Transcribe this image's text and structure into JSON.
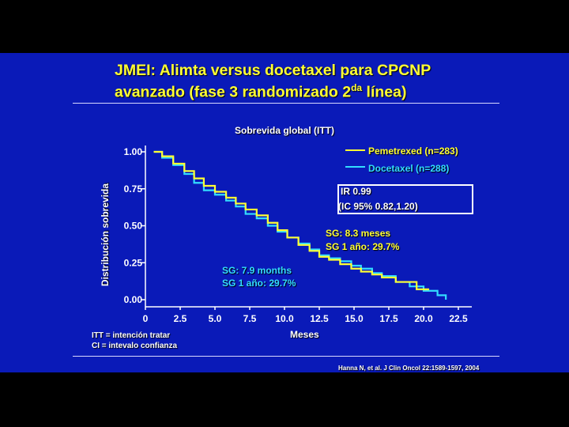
{
  "slide": {
    "title_line1": "JMEI: Alimta versus docetaxel para CPCNP",
    "title_line2_pre": "avanzado (fase 3 randomizado 2",
    "title_sup": "da",
    "title_line2_post": " línea)",
    "footnote_itt": "ITT = intención tratar",
    "footnote_ci": "CI = intevalo confianza",
    "citation": "Hanna N, et al. J Clin Oncol 22:1589-1597, 2004",
    "colors": {
      "background": "#0a1ab8",
      "title": "#ffff33",
      "pemetrexed": "#ffff33",
      "docetaxel": "#33ddff"
    }
  },
  "chart_data": {
    "type": "line",
    "subtitle": "Sobrevida global (ITT)",
    "xlabel": "Meses",
    "ylabel": "Distribución sobrevida",
    "xlim": [
      0,
      22.5
    ],
    "ylim": [
      0,
      1
    ],
    "x_ticks": [
      "0",
      "2.5",
      "5.0",
      "7.5",
      "10.0",
      "12.5",
      "15.0",
      "17.5",
      "20.0",
      "22.5"
    ],
    "y_ticks": [
      "0.00",
      "0.25",
      "0.50",
      "0.75",
      "1.00"
    ],
    "legend": "top-right",
    "series": [
      {
        "name": "Pemetrexed (n=283)",
        "color": "#ffff33",
        "x": [
          0.6,
          1.2,
          2.0,
          2.8,
          3.5,
          4.2,
          5.0,
          5.8,
          6.5,
          7.2,
          8.0,
          8.8,
          9.5,
          10.2,
          11.0,
          11.8,
          12.5,
          13.2,
          14.0,
          14.8,
          15.5,
          16.3,
          17.0,
          18.0,
          19.5,
          20.4
        ],
        "y": [
          1.0,
          0.97,
          0.92,
          0.87,
          0.82,
          0.77,
          0.73,
          0.69,
          0.65,
          0.61,
          0.57,
          0.52,
          0.47,
          0.42,
          0.37,
          0.33,
          0.29,
          0.27,
          0.24,
          0.21,
          0.19,
          0.17,
          0.15,
          0.12,
          0.07,
          0.07
        ]
      },
      {
        "name": "Docetaxel (n=288)",
        "color": "#33ddff",
        "x": [
          0.6,
          1.2,
          2.0,
          2.8,
          3.5,
          4.2,
          5.0,
          5.8,
          6.5,
          7.2,
          8.0,
          8.8,
          9.5,
          10.2,
          11.0,
          11.8,
          12.5,
          13.2,
          14.0,
          14.8,
          15.5,
          16.3,
          17.0,
          18.0,
          19.0,
          20.0,
          21.0,
          21.6
        ],
        "y": [
          1.0,
          0.96,
          0.91,
          0.85,
          0.79,
          0.74,
          0.71,
          0.67,
          0.63,
          0.58,
          0.55,
          0.5,
          0.46,
          0.42,
          0.38,
          0.34,
          0.3,
          0.28,
          0.26,
          0.23,
          0.21,
          0.18,
          0.16,
          0.12,
          0.09,
          0.06,
          0.03,
          0.0
        ]
      }
    ],
    "annotations": {
      "ir_line1": "IR  0.99",
      "ir_line2": "(IC 95% 0.82,1.20)",
      "pem_sg": "SG:  8.3 meses",
      "pem_sg1": "SG 1 año: 29.7%",
      "doc_sg": "SG: 7.9 months",
      "doc_sg1": "SG 1 año: 29.7%"
    }
  }
}
